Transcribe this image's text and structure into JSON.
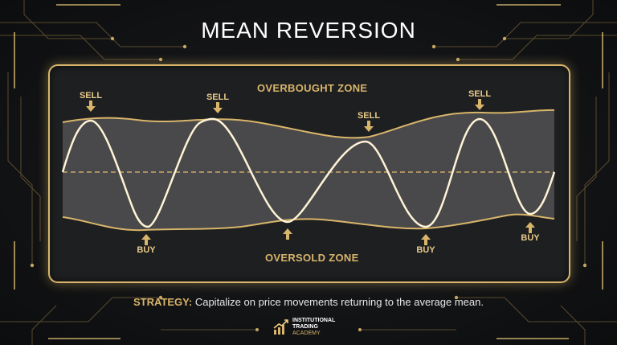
{
  "title": "MEAN REVERSION",
  "zones": {
    "overbought": "OVERBOUGHT ZONE",
    "oversold": "OVERSOLD ZONE"
  },
  "signals": {
    "sell": [
      "SELL",
      "SELL",
      "SELL",
      "SELL"
    ],
    "buy": [
      "BUY",
      "BUY",
      "BUY",
      "BUY"
    ]
  },
  "strategy": {
    "label": "STRATEGY:",
    "text": "Capitalize on price movements returning to the average mean."
  },
  "logo": {
    "line1": "INSTITUTIONAL",
    "line2": "TRADING",
    "line3": "ACADEMY"
  },
  "colors": {
    "accent_gold": "#d8b56a",
    "wave": "#fff3d6",
    "background": "#131416"
  }
}
